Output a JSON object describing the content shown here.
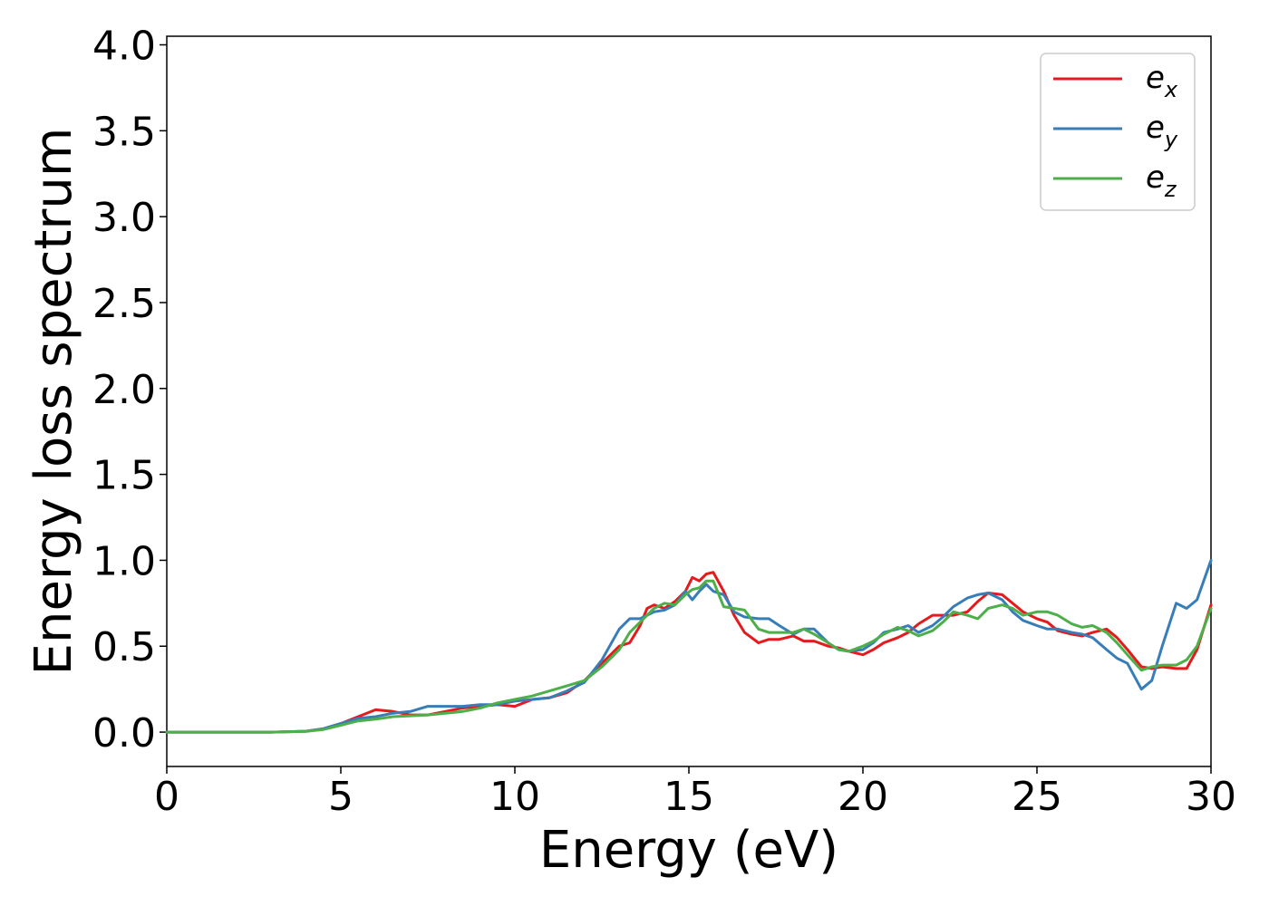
{
  "chart_data": {
    "type": "line",
    "xlabel": "Energy (eV)",
    "ylabel": "Energy loss spectrum",
    "xlim": [
      0,
      30
    ],
    "ylim": [
      -0.2,
      4.05
    ],
    "xticks": [
      "0",
      "5",
      "10",
      "15",
      "20",
      "25",
      "30"
    ],
    "yticks": [
      "0.0",
      "0.5",
      "1.0",
      "1.5",
      "2.0",
      "2.5",
      "3.0",
      "3.5",
      "4.0"
    ],
    "grid": false,
    "legend_position": "top-right",
    "series": [
      {
        "name": "e",
        "subscript": "x",
        "color": "#e41a1c",
        "x": [
          0,
          3,
          4,
          4.5,
          5,
          5.5,
          6,
          6.5,
          7,
          7.5,
          8,
          8.5,
          9,
          9.5,
          10,
          10.5,
          11,
          11.5,
          12,
          12.5,
          13,
          13.3,
          13.6,
          13.8,
          14,
          14.3,
          14.6,
          14.9,
          15.1,
          15.3,
          15.5,
          15.7,
          16,
          16.3,
          16.6,
          17,
          17.3,
          17.6,
          18,
          18.3,
          18.6,
          19,
          19.3,
          19.6,
          20,
          20.3,
          20.6,
          21,
          21.3,
          21.6,
          22,
          22.3,
          22.6,
          23,
          23.3,
          23.6,
          24,
          24.3,
          24.6,
          25,
          25.3,
          25.6,
          26,
          26.3,
          26.6,
          27,
          27.3,
          27.6,
          28,
          28.3,
          28.6,
          29,
          29.3,
          29.6,
          30
        ],
        "y": [
          0,
          0,
          0.005,
          0.02,
          0.05,
          0.09,
          0.13,
          0.12,
          0.1,
          0.1,
          0.12,
          0.14,
          0.15,
          0.16,
          0.15,
          0.19,
          0.2,
          0.23,
          0.3,
          0.4,
          0.5,
          0.52,
          0.62,
          0.72,
          0.74,
          0.72,
          0.76,
          0.82,
          0.9,
          0.88,
          0.92,
          0.93,
          0.82,
          0.68,
          0.58,
          0.52,
          0.54,
          0.54,
          0.56,
          0.53,
          0.53,
          0.5,
          0.49,
          0.47,
          0.45,
          0.48,
          0.52,
          0.55,
          0.58,
          0.63,
          0.68,
          0.68,
          0.68,
          0.7,
          0.76,
          0.81,
          0.8,
          0.75,
          0.7,
          0.66,
          0.64,
          0.59,
          0.57,
          0.56,
          0.58,
          0.6,
          0.55,
          0.48,
          0.38,
          0.37,
          0.38,
          0.37,
          0.37,
          0.48,
          0.74
        ]
      },
      {
        "name": "e",
        "subscript": "y",
        "color": "#377eb8",
        "x": [
          0,
          3,
          4,
          4.5,
          5,
          5.5,
          6,
          6.5,
          7,
          7.5,
          8,
          8.5,
          9,
          9.5,
          10,
          10.5,
          11,
          11.5,
          12,
          12.5,
          13,
          13.3,
          13.6,
          13.8,
          14,
          14.3,
          14.6,
          14.9,
          15.1,
          15.3,
          15.5,
          15.7,
          16,
          16.3,
          16.6,
          17,
          17.3,
          17.6,
          18,
          18.3,
          18.6,
          19,
          19.3,
          19.6,
          20,
          20.3,
          20.6,
          21,
          21.3,
          21.6,
          22,
          22.3,
          22.6,
          23,
          23.3,
          23.6,
          24,
          24.3,
          24.6,
          25,
          25.3,
          25.6,
          26,
          26.3,
          26.6,
          27,
          27.3,
          27.6,
          28,
          28.3,
          28.6,
          29,
          29.3,
          29.6,
          30
        ],
        "y": [
          0,
          0,
          0.005,
          0.02,
          0.05,
          0.08,
          0.09,
          0.11,
          0.12,
          0.15,
          0.15,
          0.15,
          0.16,
          0.16,
          0.18,
          0.19,
          0.2,
          0.24,
          0.29,
          0.42,
          0.6,
          0.66,
          0.66,
          0.68,
          0.7,
          0.71,
          0.74,
          0.82,
          0.77,
          0.82,
          0.86,
          0.82,
          0.8,
          0.7,
          0.67,
          0.66,
          0.66,
          0.62,
          0.57,
          0.6,
          0.6,
          0.52,
          0.48,
          0.47,
          0.48,
          0.52,
          0.58,
          0.6,
          0.62,
          0.58,
          0.62,
          0.67,
          0.73,
          0.78,
          0.8,
          0.81,
          0.77,
          0.7,
          0.65,
          0.62,
          0.6,
          0.6,
          0.58,
          0.57,
          0.55,
          0.48,
          0.43,
          0.4,
          0.25,
          0.3,
          0.5,
          0.75,
          0.72,
          0.77,
          1.0
        ]
      },
      {
        "name": "e",
        "subscript": "z",
        "color": "#4daf4a",
        "x": [
          0,
          3,
          4,
          4.5,
          5,
          5.5,
          6,
          6.5,
          7,
          7.5,
          8,
          8.5,
          9,
          9.5,
          10,
          10.5,
          11,
          11.5,
          12,
          12.5,
          13,
          13.3,
          13.6,
          13.8,
          14,
          14.3,
          14.6,
          14.9,
          15.1,
          15.3,
          15.5,
          15.7,
          16,
          16.3,
          16.6,
          17,
          17.3,
          17.6,
          18,
          18.3,
          18.6,
          19,
          19.3,
          19.6,
          20,
          20.3,
          20.6,
          21,
          21.3,
          21.6,
          22,
          22.3,
          22.6,
          23,
          23.3,
          23.6,
          24,
          24.3,
          24.6,
          25,
          25.3,
          25.6,
          26,
          26.3,
          26.6,
          27,
          27.3,
          27.6,
          28,
          28.3,
          28.6,
          29,
          29.3,
          29.6,
          30
        ],
        "y": [
          0,
          0,
          0.004,
          0.015,
          0.04,
          0.065,
          0.075,
          0.09,
          0.095,
          0.1,
          0.11,
          0.12,
          0.14,
          0.17,
          0.19,
          0.21,
          0.24,
          0.27,
          0.3,
          0.38,
          0.48,
          0.58,
          0.64,
          0.68,
          0.72,
          0.75,
          0.74,
          0.8,
          0.83,
          0.84,
          0.88,
          0.88,
          0.73,
          0.72,
          0.71,
          0.6,
          0.58,
          0.58,
          0.58,
          0.6,
          0.57,
          0.52,
          0.48,
          0.47,
          0.5,
          0.53,
          0.57,
          0.61,
          0.59,
          0.56,
          0.59,
          0.64,
          0.7,
          0.68,
          0.66,
          0.72,
          0.74,
          0.72,
          0.68,
          0.7,
          0.7,
          0.68,
          0.63,
          0.61,
          0.62,
          0.58,
          0.52,
          0.45,
          0.36,
          0.38,
          0.39,
          0.39,
          0.42,
          0.5,
          0.72
        ]
      }
    ]
  }
}
